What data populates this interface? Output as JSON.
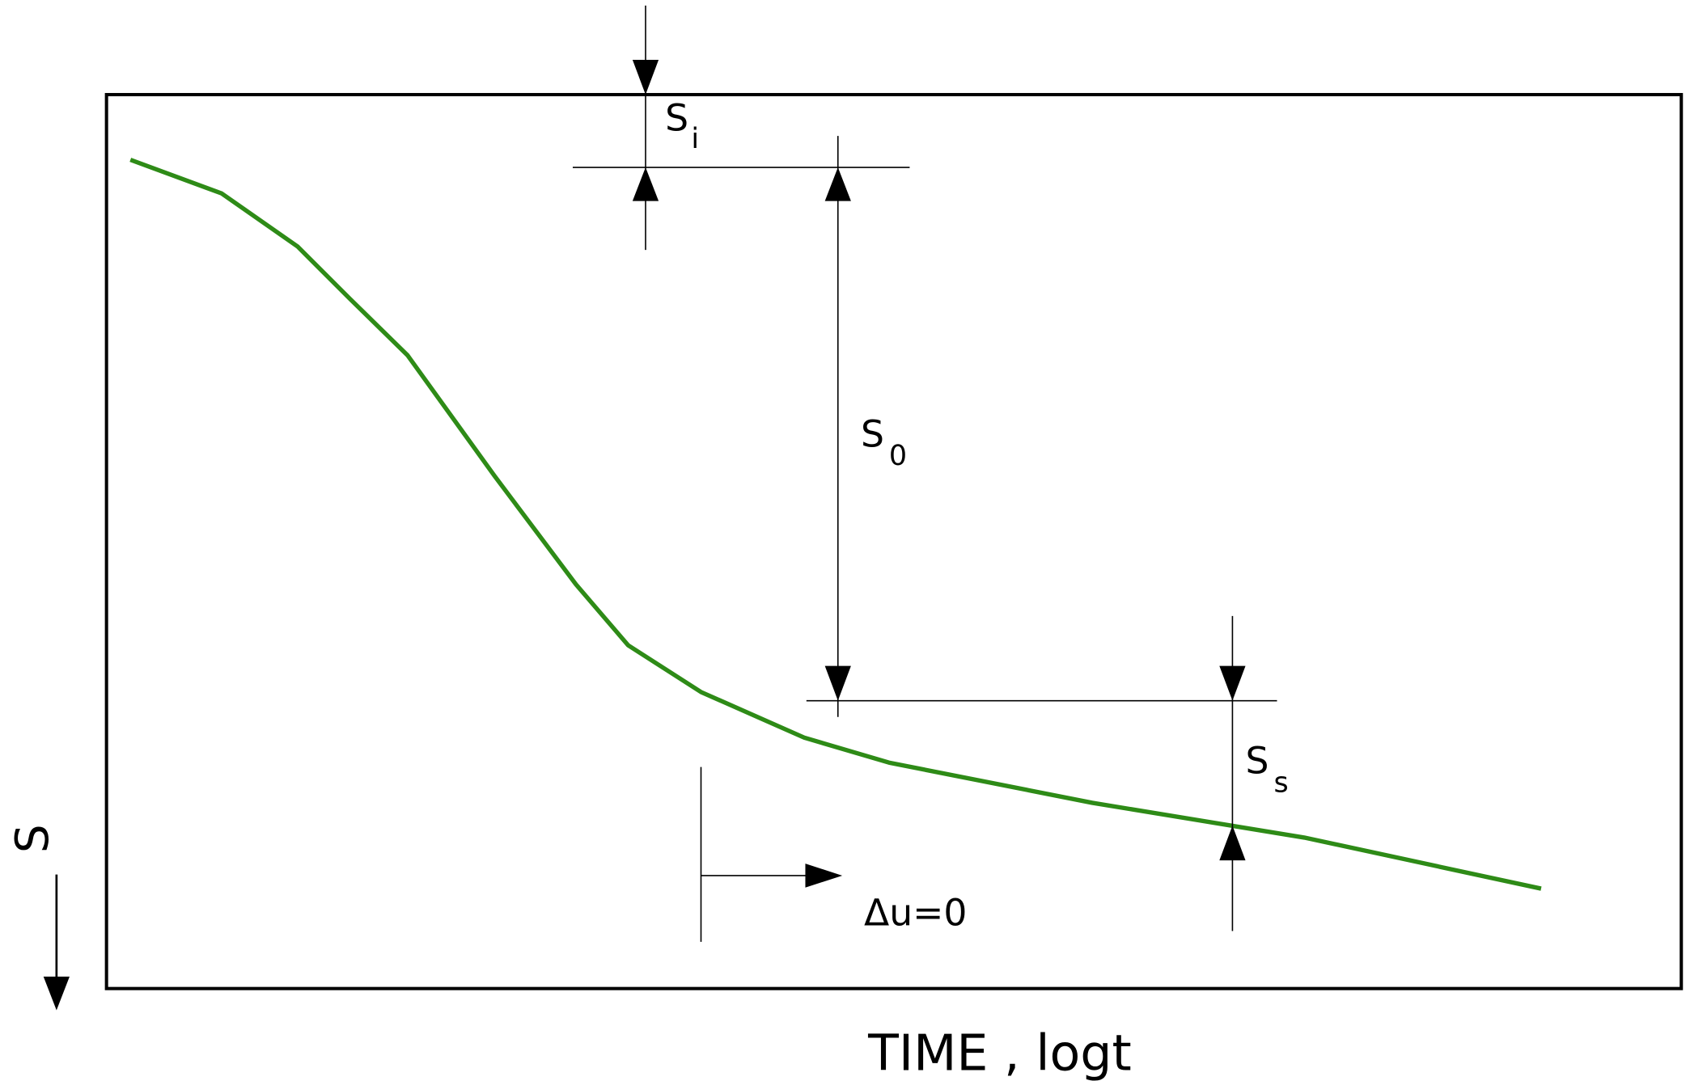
{
  "labels": {
    "s_i": {
      "main": "S",
      "sub": "i"
    },
    "s_0": {
      "main": "S",
      "sub": "0"
    },
    "s_s": {
      "main": "S",
      "sub": "s"
    },
    "delta_u": "Δu=0"
  },
  "x_axis_label": "TIME , logt",
  "y_axis_label": "S"
}
